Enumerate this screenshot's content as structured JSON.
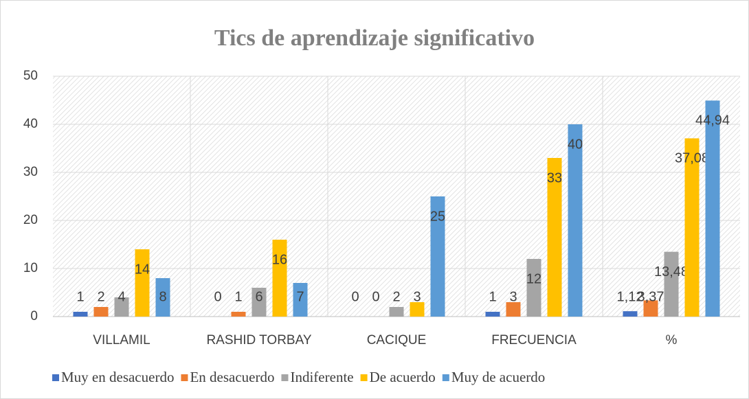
{
  "chart_data": {
    "type": "bar",
    "title": "Tics de aprendizaje significativo",
    "categories": [
      "VILLAMIL",
      "RASHID TORBAY",
      "CACIQUE",
      "FRECUENCIA",
      "%"
    ],
    "series": [
      {
        "name": "Muy en desacuerdo",
        "color": "#4472c4",
        "values": [
          1,
          0,
          0,
          1,
          1.12
        ],
        "value_labels": [
          "1",
          "0",
          "0",
          "1",
          "1,12"
        ]
      },
      {
        "name": "En desacuerdo",
        "color": "#ed7d31",
        "values": [
          2,
          1,
          0,
          3,
          3.37
        ],
        "value_labels": [
          "2",
          "1",
          "0",
          "3",
          "3,37"
        ]
      },
      {
        "name": "Indiferente",
        "color": "#a5a5a5",
        "values": [
          4,
          6,
          2,
          12,
          13.48
        ],
        "value_labels": [
          "4",
          "6",
          "2",
          "12",
          "13,48"
        ]
      },
      {
        "name": "De acuerdo",
        "color": "#ffc000",
        "values": [
          14,
          16,
          3,
          33,
          37.08
        ],
        "value_labels": [
          "14",
          "16",
          "3",
          "33",
          "37,08"
        ]
      },
      {
        "name": "Muy de acuerdo",
        "color": "#5b9bd5",
        "values": [
          8,
          7,
          25,
          40,
          44.94
        ],
        "value_labels": [
          "8",
          "7",
          "25",
          "40",
          "44,94"
        ]
      }
    ],
    "ylim": [
      0,
      50
    ],
    "yticks": [
      0,
      10,
      20,
      30,
      40,
      50
    ],
    "grid": true,
    "legend": "bottom"
  }
}
